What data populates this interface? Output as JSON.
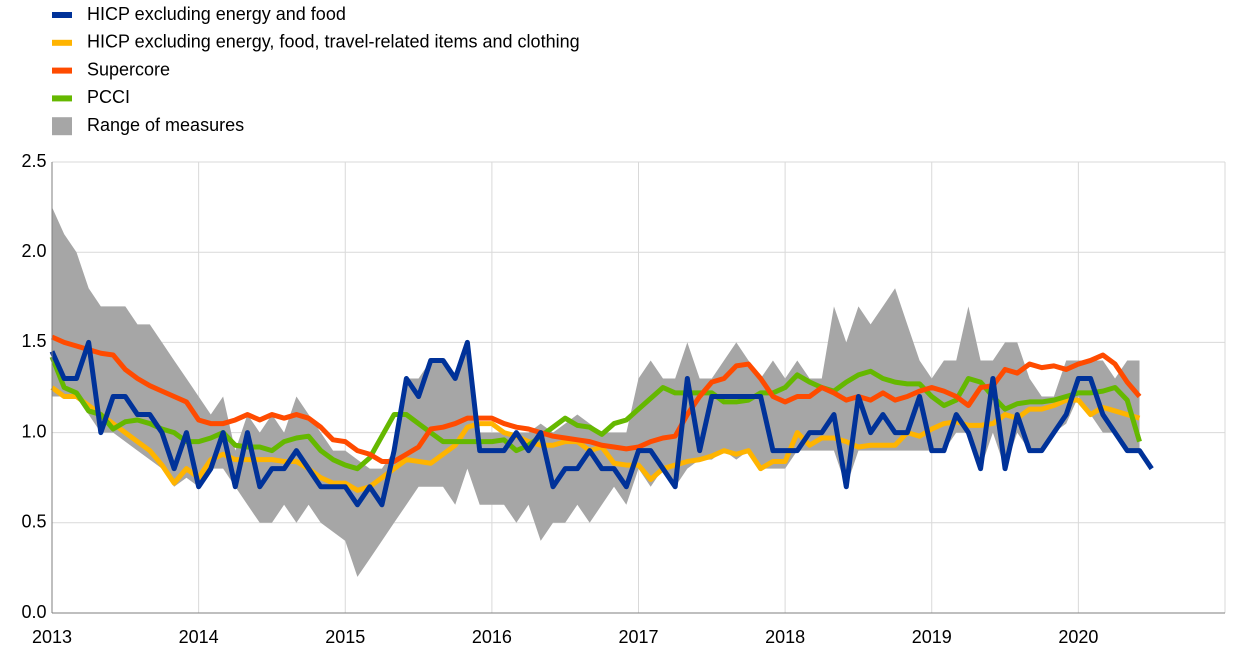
{
  "chart_data": {
    "type": "line",
    "x": [
      2013,
      2013.083,
      2013.167,
      2013.25,
      2013.333,
      2013.417,
      2013.5,
      2013.583,
      2013.667,
      2013.75,
      2013.833,
      2013.917,
      2014,
      2014.083,
      2014.167,
      2014.25,
      2014.333,
      2014.417,
      2014.5,
      2014.583,
      2014.667,
      2014.75,
      2014.833,
      2014.917,
      2015,
      2015.083,
      2015.167,
      2015.25,
      2015.333,
      2015.417,
      2015.5,
      2015.583,
      2015.667,
      2015.75,
      2015.833,
      2015.917,
      2016,
      2016.083,
      2016.167,
      2016.25,
      2016.333,
      2016.417,
      2016.5,
      2016.583,
      2016.667,
      2016.75,
      2016.833,
      2016.917,
      2017,
      2017.083,
      2017.167,
      2017.25,
      2017.333,
      2017.417,
      2017.5,
      2017.583,
      2017.667,
      2017.75,
      2017.833,
      2017.917,
      2018,
      2018.083,
      2018.167,
      2018.25,
      2018.333,
      2018.417,
      2018.5,
      2018.583,
      2018.667,
      2018.75,
      2018.833,
      2018.917,
      2019,
      2019.083,
      2019.167,
      2019.25,
      2019.333,
      2019.417,
      2019.5,
      2019.583,
      2019.667,
      2019.75,
      2019.833,
      2019.917,
      2020,
      2020.083,
      2020.167,
      2020.25,
      2020.333,
      2020.417,
      2020.5
    ],
    "series": [
      {
        "name": "HICP excluding energy and food",
        "color": "#003299",
        "values": [
          1.45,
          1.3,
          1.3,
          1.5,
          1.0,
          1.2,
          1.2,
          1.1,
          1.1,
          1.0,
          0.8,
          1.0,
          0.7,
          0.8,
          1.0,
          0.7,
          1.0,
          0.7,
          0.8,
          0.8,
          0.9,
          0.8,
          0.7,
          0.7,
          0.7,
          0.6,
          0.7,
          0.6,
          0.9,
          1.3,
          1.2,
          1.4,
          1.4,
          1.3,
          1.5,
          0.9,
          0.9,
          0.9,
          1.0,
          0.9,
          1.0,
          0.7,
          0.8,
          0.8,
          0.9,
          0.8,
          0.8,
          0.7,
          0.9,
          0.9,
          0.8,
          0.7,
          1.3,
          0.9,
          1.2,
          1.2,
          1.2,
          1.2,
          1.2,
          0.9,
          0.9,
          0.9,
          1.0,
          1.0,
          1.1,
          0.7,
          1.2,
          1.0,
          1.1,
          1.0,
          1.0,
          1.2,
          0.9,
          0.9,
          1.1,
          1.0,
          0.8,
          1.3,
          0.8,
          1.1,
          0.9,
          0.9,
          1.0,
          1.1,
          1.3,
          1.3,
          1.1,
          1.0,
          0.9,
          0.9,
          0.8
        ]
      },
      {
        "name": "HICP excluding energy, food, travel-related items and clothing",
        "color": "#ffb400",
        "values": [
          1.25,
          1.2,
          1.2,
          1.15,
          1.1,
          1.05,
          1.0,
          0.95,
          0.9,
          0.82,
          0.72,
          0.8,
          0.75,
          0.85,
          0.88,
          0.85,
          0.85,
          0.85,
          0.85,
          0.84,
          0.84,
          0.8,
          0.75,
          0.72,
          0.72,
          0.68,
          0.7,
          0.75,
          0.8,
          0.85,
          0.84,
          0.83,
          0.88,
          0.93,
          1.03,
          1.05,
          1.05,
          1.0,
          0.98,
          0.95,
          0.93,
          0.93,
          0.95,
          0.95,
          0.9,
          0.92,
          0.83,
          0.82,
          0.82,
          0.74,
          0.8,
          0.82,
          0.84,
          0.85,
          0.87,
          0.9,
          0.88,
          0.9,
          0.8,
          0.84,
          0.84,
          1.0,
          0.93,
          0.97,
          0.97,
          0.95,
          0.92,
          0.93,
          0.93,
          0.93,
          1.0,
          0.98,
          1.02,
          1.05,
          1.06,
          1.04,
          1.04,
          1.05,
          1.1,
          1.08,
          1.13,
          1.13,
          1.15,
          1.18,
          1.18,
          1.1,
          1.14,
          1.12,
          1.1,
          1.08,
          null
        ]
      },
      {
        "name": "Supercore",
        "color": "#ff4b00",
        "values": [
          1.53,
          1.5,
          1.48,
          1.46,
          1.44,
          1.43,
          1.35,
          1.3,
          1.26,
          1.23,
          1.2,
          1.17,
          1.07,
          1.05,
          1.05,
          1.07,
          1.1,
          1.07,
          1.1,
          1.08,
          1.1,
          1.08,
          1.03,
          0.96,
          0.95,
          0.9,
          0.88,
          0.84,
          0.84,
          0.88,
          0.92,
          1.02,
          1.03,
          1.05,
          1.08,
          1.08,
          1.08,
          1.05,
          1.03,
          1.02,
          1.0,
          0.98,
          0.97,
          0.96,
          0.95,
          0.93,
          0.92,
          0.91,
          0.92,
          0.95,
          0.97,
          0.98,
          1.1,
          1.2,
          1.28,
          1.3,
          1.37,
          1.38,
          1.3,
          1.2,
          1.17,
          1.2,
          1.2,
          1.25,
          1.22,
          1.18,
          1.2,
          1.18,
          1.22,
          1.18,
          1.2,
          1.23,
          1.25,
          1.23,
          1.2,
          1.15,
          1.25,
          1.26,
          1.35,
          1.33,
          1.38,
          1.36,
          1.37,
          1.35,
          1.38,
          1.4,
          1.43,
          1.38,
          1.28,
          1.2,
          null
        ]
      },
      {
        "name": "PCCI",
        "color": "#65b800",
        "values": [
          1.42,
          1.25,
          1.22,
          1.12,
          1.1,
          1.02,
          1.06,
          1.07,
          1.05,
          1.02,
          1.0,
          0.95,
          0.95,
          0.97,
          1.0,
          0.93,
          0.92,
          0.92,
          0.9,
          0.95,
          0.97,
          0.98,
          0.9,
          0.85,
          0.82,
          0.8,
          0.86,
          0.98,
          1.1,
          1.1,
          1.05,
          1.0,
          0.95,
          0.95,
          0.95,
          0.95,
          0.95,
          0.96,
          0.9,
          0.93,
          0.98,
          1.03,
          1.08,
          1.04,
          1.03,
          0.99,
          1.05,
          1.07,
          1.13,
          1.19,
          1.25,
          1.22,
          1.22,
          1.22,
          1.22,
          1.17,
          1.17,
          1.18,
          1.22,
          1.22,
          1.25,
          1.32,
          1.28,
          1.25,
          1.23,
          1.28,
          1.32,
          1.34,
          1.3,
          1.28,
          1.27,
          1.27,
          1.2,
          1.15,
          1.18,
          1.3,
          1.28,
          1.2,
          1.13,
          1.16,
          1.17,
          1.17,
          1.18,
          1.2,
          1.22,
          1.22,
          1.23,
          1.25,
          1.18,
          0.95,
          null
        ]
      }
    ],
    "band": {
      "name": "Range of measures",
      "color": "#a6a6a6",
      "upper": [
        2.25,
        2.1,
        2.0,
        1.8,
        1.7,
        1.7,
        1.7,
        1.6,
        1.6,
        1.5,
        1.4,
        1.3,
        1.2,
        1.1,
        1.2,
        0.9,
        1.1,
        1.0,
        1.1,
        1.0,
        1.2,
        1.1,
        1.0,
        0.9,
        0.9,
        0.85,
        0.8,
        0.8,
        0.9,
        1.3,
        1.3,
        1.4,
        1.4,
        1.3,
        1.5,
        1.0,
        1.0,
        1.0,
        1.0,
        1.0,
        1.05,
        1.0,
        1.05,
        1.1,
        1.05,
        1.0,
        1.0,
        1.0,
        1.3,
        1.4,
        1.3,
        1.3,
        1.5,
        1.3,
        1.3,
        1.4,
        1.5,
        1.4,
        1.3,
        1.4,
        1.3,
        1.4,
        1.3,
        1.3,
        1.7,
        1.5,
        1.7,
        1.6,
        1.7,
        1.8,
        1.6,
        1.4,
        1.3,
        1.4,
        1.4,
        1.7,
        1.4,
        1.4,
        1.5,
        1.5,
        1.3,
        1.2,
        1.2,
        1.4,
        1.4,
        1.4,
        1.4,
        1.3,
        1.4,
        1.4,
        null
      ],
      "lower": [
        1.2,
        1.2,
        1.2,
        1.1,
        1.0,
        1.0,
        0.95,
        0.9,
        0.85,
        0.8,
        0.7,
        0.75,
        0.7,
        0.8,
        0.8,
        0.7,
        0.6,
        0.5,
        0.5,
        0.6,
        0.5,
        0.6,
        0.5,
        0.45,
        0.4,
        0.2,
        0.3,
        0.4,
        0.5,
        0.6,
        0.7,
        0.7,
        0.7,
        0.6,
        0.8,
        0.6,
        0.6,
        0.6,
        0.5,
        0.6,
        0.4,
        0.5,
        0.5,
        0.6,
        0.5,
        0.6,
        0.7,
        0.6,
        0.8,
        0.7,
        0.8,
        0.7,
        0.8,
        0.85,
        0.85,
        0.9,
        0.85,
        0.9,
        0.8,
        0.8,
        0.8,
        0.9,
        0.9,
        0.9,
        0.9,
        0.7,
        0.9,
        0.9,
        0.9,
        0.9,
        0.9,
        0.9,
        0.9,
        0.9,
        1.0,
        1.0,
        0.8,
        1.0,
        0.8,
        1.0,
        0.9,
        0.9,
        1.0,
        1.05,
        1.2,
        1.1,
        1.0,
        1.0,
        0.9,
        0.9,
        null
      ]
    },
    "xlim": [
      2013,
      2021
    ],
    "xticks": [
      2013,
      2014,
      2015,
      2016,
      2017,
      2018,
      2019,
      2020
    ],
    "ylim": [
      0,
      2.5
    ],
    "yticks": [
      {
        "value": 0,
        "label": "0.0"
      },
      0.5,
      {
        "value": 1,
        "label": "1.0"
      },
      1.5,
      {
        "value": 2,
        "label": "2.0"
      },
      2.5
    ],
    "grid": true
  }
}
